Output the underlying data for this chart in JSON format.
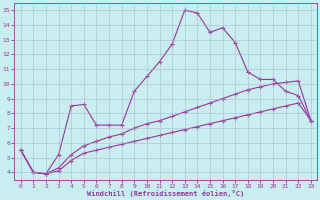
{
  "x": [
    0,
    1,
    2,
    3,
    4,
    5,
    6,
    7,
    8,
    9,
    10,
    11,
    12,
    13,
    14,
    15,
    16,
    17,
    18,
    19,
    20,
    21,
    22,
    23
  ],
  "line_main": [
    5.5,
    4.0,
    3.9,
    5.2,
    8.5,
    8.6,
    7.2,
    7.2,
    7.2,
    9.5,
    10.5,
    11.5,
    12.7,
    15.0,
    14.8,
    13.5,
    13.8,
    12.8,
    10.8,
    10.3,
    10.3,
    9.5,
    9.2,
    7.5
  ],
  "line_upper": [
    5.5,
    4.0,
    3.9,
    4.3,
    5.2,
    5.8,
    6.1,
    6.4,
    6.6,
    7.0,
    7.3,
    7.5,
    7.8,
    8.1,
    8.4,
    8.7,
    9.0,
    9.3,
    9.6,
    9.8,
    10.0,
    10.1,
    10.2,
    7.5
  ],
  "line_lower": [
    5.5,
    4.0,
    3.9,
    4.1,
    4.8,
    5.3,
    5.5,
    5.7,
    5.9,
    6.1,
    6.3,
    6.5,
    6.7,
    6.9,
    7.1,
    7.3,
    7.5,
    7.7,
    7.9,
    8.1,
    8.3,
    8.5,
    8.7,
    7.5
  ],
  "line_color": "#993399",
  "bg_color": "#c8eef0",
  "grid_color": "#aaaacc",
  "xlabel": "Windchill (Refroidissement éolien,°C)",
  "ylim": [
    3.5,
    15.5
  ],
  "xlim": [
    -0.5,
    23.5
  ],
  "yticks": [
    4,
    5,
    6,
    7,
    8,
    9,
    10,
    11,
    12,
    13,
    14,
    15
  ],
  "xticks": [
    0,
    1,
    2,
    3,
    4,
    5,
    6,
    7,
    8,
    9,
    10,
    11,
    12,
    13,
    14,
    15,
    16,
    17,
    18,
    19,
    20,
    21,
    22,
    23
  ]
}
